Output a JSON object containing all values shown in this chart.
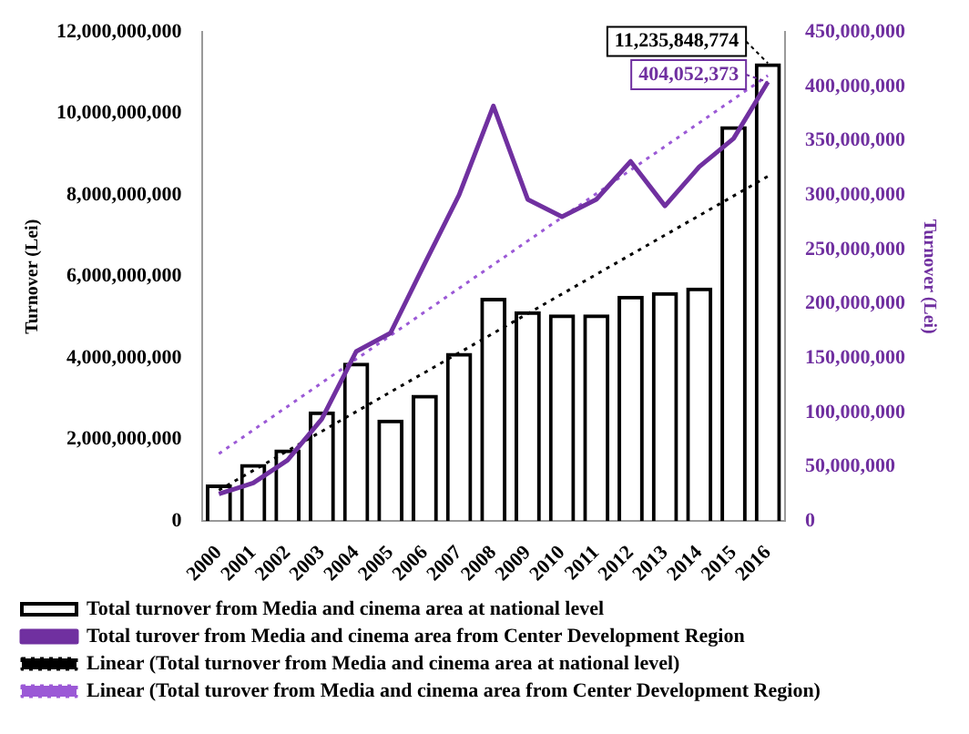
{
  "chart_data": {
    "type": "bar",
    "categories": [
      "2000",
      "2001",
      "2002",
      "2003",
      "2004",
      "2005",
      "2006",
      "2007",
      "2008",
      "2009",
      "2010",
      "2011",
      "2012",
      "2013",
      "2014",
      "2015",
      "2016"
    ],
    "ylabel": "Turnover (Lei)",
    "y2label": "Turnover (Lei)",
    "series": [
      {
        "name": "Total turnover from Media and cinema area at national level",
        "color": "#000000",
        "values": [
          900000000,
          1400000000,
          1760000000,
          2690000000,
          3890000000,
          2490000000,
          3100000000,
          4130000000,
          5480000000,
          5150000000,
          5070000000,
          5070000000,
          5530000000,
          5620000000,
          5730000000,
          9690000000,
          11235848774
        ]
      },
      {
        "name": "Total turover from Media and cinema area from Center Development Region",
        "type": "line",
        "axis": "y2",
        "color": "#7030a0",
        "line_style": "solid",
        "values": [
          25000000,
          35000000,
          56000000,
          94000000,
          156000000,
          173000000,
          237000000,
          300000000,
          382000000,
          296000000,
          280000000,
          296000000,
          331000000,
          290000000,
          326000000,
          352000000,
          404052373
        ]
      },
      {
        "name": "Linear (Total turnover from Media and cinema area at national level)",
        "type": "line",
        "color": "#000000",
        "line_style": "dotted",
        "values": [
          760000000,
          null,
          null,
          null,
          null,
          null,
          null,
          null,
          null,
          null,
          null,
          null,
          null,
          null,
          null,
          null,
          8460000000
        ]
      },
      {
        "name": "Linear (Total turover from Media and cinema area from Center Development Region)",
        "type": "line",
        "axis": "y2",
        "color": "#9b59d6",
        "line_style": "dotted",
        "values": [
          62000000,
          null,
          null,
          null,
          null,
          null,
          null,
          null,
          null,
          null,
          null,
          null,
          null,
          null,
          null,
          null,
          410000000
        ]
      }
    ],
    "ylim": [
      0,
      12000000000
    ],
    "yticks": [
      {
        "value": 0,
        "label": "0"
      },
      {
        "value": 2000000000,
        "label": "2,000,000,000"
      },
      {
        "value": 4000000000,
        "label": "4,000,000,000"
      },
      {
        "value": 6000000000,
        "label": "6,000,000,000"
      },
      {
        "value": 8000000000,
        "label": "8,000,000,000"
      },
      {
        "value": 10000000000,
        "label": "10,000,000,000"
      },
      {
        "value": 12000000000,
        "label": "12,000,000,000"
      }
    ],
    "y2lim": [
      0,
      450000000
    ],
    "y2ticks": [
      {
        "value": 0,
        "label": "0"
      },
      {
        "value": 50000000,
        "label": "50,000,000"
      },
      {
        "value": 100000000,
        "label": "100,000,000"
      },
      {
        "value": 150000000,
        "label": "150,000,000"
      },
      {
        "value": 200000000,
        "label": "200,000,000"
      },
      {
        "value": 250000000,
        "label": "250,000,000"
      },
      {
        "value": 300000000,
        "label": "300,000,000"
      },
      {
        "value": 350000000,
        "label": "350,000,000"
      },
      {
        "value": 400000000,
        "label": "400,000,000"
      },
      {
        "value": 450000000,
        "label": "450,000,000"
      }
    ],
    "annotations": [
      {
        "text": "11,235,848,774",
        "x": "2016",
        "y": 11235848774
      },
      "404,052,373"
    ],
    "grid": false,
    "legend": "bottom",
    "marker": "none"
  }
}
